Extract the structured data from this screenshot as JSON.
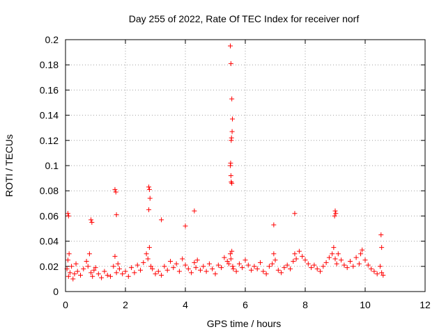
{
  "chart_data": {
    "type": "scatter",
    "title": "Day 255 of 2022, Rate Of TEC Index for receiver norf",
    "xlabel": "GPS time / hours",
    "ylabel": "ROTI / TECUs",
    "xlim": [
      0,
      12
    ],
    "ylim": [
      0,
      0.2
    ],
    "xticks": [
      0,
      2,
      4,
      6,
      8,
      10,
      12
    ],
    "yticks": [
      0,
      0.02,
      0.04,
      0.06,
      0.08,
      0.1,
      0.12,
      0.14,
      0.16,
      0.18,
      0.2
    ],
    "xtick_labels": [
      "0",
      "2",
      "4",
      "6",
      "8",
      "10",
      "12"
    ],
    "ytick_labels": [
      "0",
      "0.02",
      "0.04",
      "0.06",
      "0.08",
      "0.1",
      "0.12",
      "0.14",
      "0.16",
      "0.18",
      "0.2"
    ],
    "grid": true,
    "marker": "plus",
    "marker_color": "#ff0000",
    "series": [
      {
        "x": [
          0.05,
          0.08,
          0.1,
          0.12,
          0.15,
          0.2,
          0.25,
          0.3,
          0.35,
          0.4,
          0.5,
          0.6,
          0.7,
          0.75,
          0.8,
          0.85,
          0.9,
          0.95,
          1.0,
          1.1,
          1.2,
          1.3,
          1.4,
          1.5,
          1.6,
          1.65,
          1.7,
          1.75,
          1.8,
          1.9,
          2.0,
          2.1,
          2.2,
          2.3,
          2.4,
          2.5,
          2.6,
          2.7,
          2.75,
          2.8,
          2.85,
          2.9,
          3.0,
          3.1,
          3.2,
          3.3,
          3.4,
          3.5,
          3.6,
          3.7,
          3.8,
          3.9,
          4.0,
          4.1,
          4.2,
          4.3,
          4.35,
          4.4,
          4.5,
          4.6,
          4.7,
          4.8,
          4.9,
          5.0,
          5.1,
          5.2,
          5.3,
          5.4,
          5.45,
          5.5,
          5.52,
          5.55,
          5.58,
          5.6,
          5.7,
          5.8,
          5.9,
          6.0,
          6.1,
          6.2,
          6.3,
          6.4,
          6.5,
          6.6,
          6.7,
          6.8,
          6.9,
          6.95,
          7.0,
          7.1,
          7.2,
          7.3,
          7.4,
          7.5,
          7.6,
          7.65,
          7.7,
          7.8,
          7.9,
          8.0,
          8.1,
          8.2,
          8.3,
          8.4,
          8.5,
          8.6,
          8.7,
          8.8,
          8.9,
          8.95,
          9.0,
          9.05,
          9.1,
          9.2,
          9.3,
          9.4,
          9.5,
          9.6,
          9.7,
          9.8,
          9.85,
          9.9,
          10.0,
          10.1,
          10.2,
          10.3,
          10.4,
          10.5,
          10.55,
          10.6,
          5.5,
          5.52,
          5.55,
          5.57,
          5.56,
          5.54,
          5.53,
          5.51,
          5.5,
          5.52,
          5.53,
          5.55,
          1.65,
          1.68,
          1.7,
          2.78,
          2.8,
          2.82,
          2.78,
          4.3,
          9.0,
          9.02,
          8.98,
          10.53,
          10.55,
          0.08,
          0.1,
          7.65,
          0.85,
          0.88,
          6.95,
          4.0,
          3.2
        ],
        "y": [
          0.018,
          0.025,
          0.012,
          0.03,
          0.015,
          0.02,
          0.01,
          0.014,
          0.022,
          0.016,
          0.013,
          0.018,
          0.024,
          0.02,
          0.03,
          0.015,
          0.012,
          0.017,
          0.019,
          0.014,
          0.011,
          0.016,
          0.013,
          0.012,
          0.02,
          0.028,
          0.015,
          0.022,
          0.018,
          0.014,
          0.016,
          0.012,
          0.019,
          0.015,
          0.021,
          0.017,
          0.023,
          0.03,
          0.026,
          0.035,
          0.02,
          0.018,
          0.014,
          0.016,
          0.013,
          0.02,
          0.017,
          0.024,
          0.019,
          0.022,
          0.016,
          0.026,
          0.021,
          0.018,
          0.015,
          0.023,
          0.019,
          0.025,
          0.017,
          0.02,
          0.016,
          0.022,
          0.018,
          0.014,
          0.021,
          0.019,
          0.027,
          0.024,
          0.022,
          0.03,
          0.026,
          0.032,
          0.02,
          0.018,
          0.016,
          0.022,
          0.019,
          0.025,
          0.021,
          0.017,
          0.02,
          0.018,
          0.023,
          0.016,
          0.014,
          0.02,
          0.022,
          0.03,
          0.025,
          0.017,
          0.015,
          0.019,
          0.021,
          0.018,
          0.024,
          0.03,
          0.026,
          0.032,
          0.028,
          0.025,
          0.022,
          0.019,
          0.021,
          0.018,
          0.016,
          0.02,
          0.023,
          0.027,
          0.03,
          0.035,
          0.026,
          0.022,
          0.03,
          0.025,
          0.021,
          0.019,
          0.024,
          0.02,
          0.027,
          0.022,
          0.03,
          0.033,
          0.025,
          0.021,
          0.018,
          0.016,
          0.014,
          0.02,
          0.015,
          0.013,
          0.195,
          0.181,
          0.153,
          0.137,
          0.127,
          0.122,
          0.12,
          0.102,
          0.1,
          0.092,
          0.087,
          0.086,
          0.081,
          0.079,
          0.061,
          0.083,
          0.081,
          0.074,
          0.065,
          0.064,
          0.064,
          0.062,
          0.06,
          0.045,
          0.035,
          0.062,
          0.06,
          0.062,
          0.057,
          0.055,
          0.053,
          0.052,
          0.057
        ]
      }
    ]
  }
}
